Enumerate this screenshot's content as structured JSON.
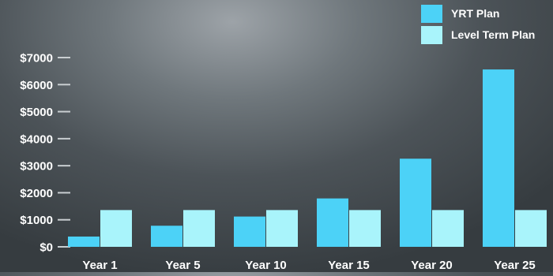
{
  "chart_data": {
    "type": "bar",
    "title": "",
    "xlabel": "",
    "ylabel": "",
    "categories": [
      "Year 1",
      "Year 5",
      "Year 10",
      "Year 15",
      "Year 20",
      "Year 25"
    ],
    "series": [
      {
        "name": "YRT Plan",
        "color": "#4cd2f7",
        "values": [
          380,
          780,
          1120,
          1790,
          3260,
          6560
        ]
      },
      {
        "name": "Level Term Plan",
        "color": "#a9f4fb",
        "values": [
          1360,
          1360,
          1360,
          1360,
          1360,
          1360
        ]
      }
    ],
    "ylim": [
      0,
      7000
    ],
    "yticks": [
      {
        "value": 0,
        "label": "$0"
      },
      {
        "value": 1000,
        "label": "$1000"
      },
      {
        "value": 2000,
        "label": "$2000"
      },
      {
        "value": 3000,
        "label": "$3000"
      },
      {
        "value": 4000,
        "label": "$4000"
      },
      {
        "value": 5000,
        "label": "$5000"
      },
      {
        "value": 6000,
        "label": "$6000"
      },
      {
        "value": 7000,
        "label": "$7000"
      }
    ],
    "grid": false,
    "legend": {
      "position": "top-right"
    },
    "tick_color": "#c9ced1"
  }
}
